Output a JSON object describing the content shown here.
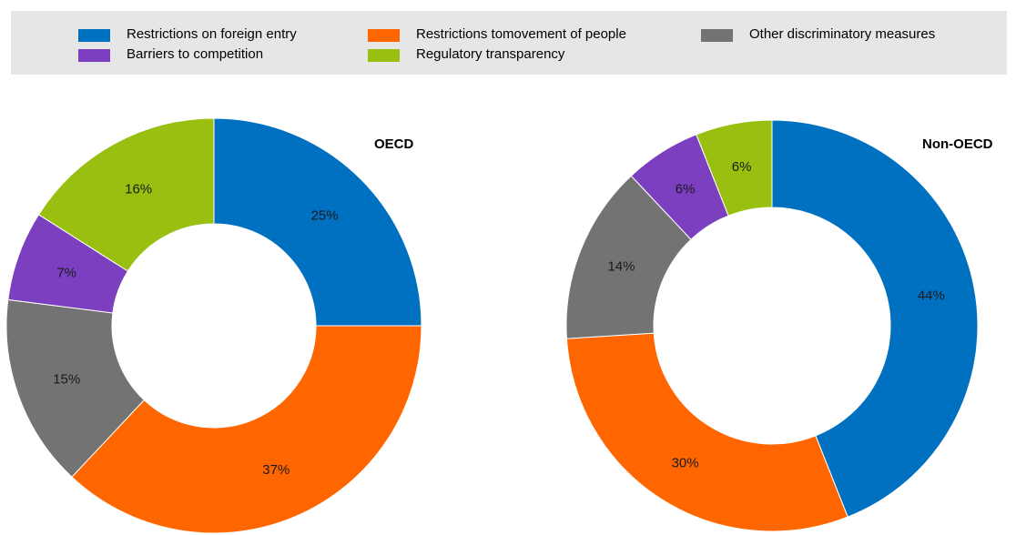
{
  "legend": {
    "items": [
      {
        "label": "Restrictions on foreign entry",
        "color": "#0070c0"
      },
      {
        "label": "Restrictions tomovement of people",
        "color": "#ff6600"
      },
      {
        "label": "Other discriminatory measures",
        "color": "#737373"
      },
      {
        "label": "Barriers to competition",
        "color": "#7b3fbf"
      },
      {
        "label": "Regulatory transparency",
        "color": "#99c010"
      }
    ]
  },
  "chart_data": [
    {
      "type": "pie",
      "title": "OECD",
      "categories": [
        "Restrictions on foreign entry",
        "Restrictions tomovement of people",
        "Other discriminatory measures",
        "Barriers to competition",
        "Regulatory transparency"
      ],
      "values": [
        25,
        37,
        15,
        7,
        16
      ],
      "labels": [
        "25%",
        "37%",
        "15%",
        "7%",
        "16%"
      ],
      "colors": [
        "#0070c0",
        "#ff6600",
        "#737373",
        "#7b3fbf",
        "#99c010"
      ]
    },
    {
      "type": "pie",
      "title": "Non-OECD",
      "categories": [
        "Restrictions on foreign entry",
        "Restrictions tomovement of people",
        "Other discriminatory measures",
        "Barriers to competition",
        "Regulatory transparency"
      ],
      "values": [
        44,
        30,
        14,
        6,
        6
      ],
      "labels": [
        "44%",
        "30%",
        "14%",
        "6%",
        "6%"
      ],
      "colors": [
        "#0070c0",
        "#ff6600",
        "#737373",
        "#7b3fbf",
        "#99c010"
      ]
    }
  ]
}
